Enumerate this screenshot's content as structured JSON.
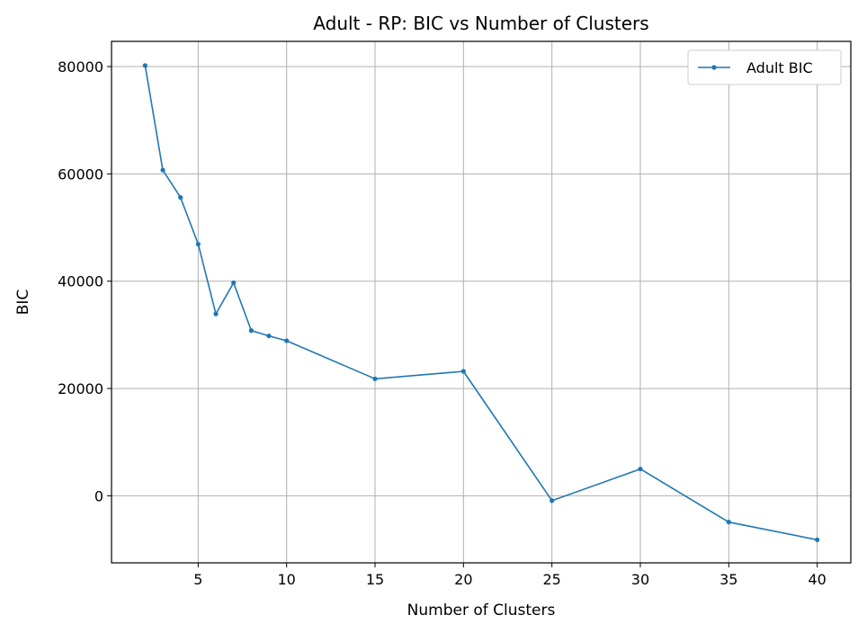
{
  "chart_data": {
    "type": "line",
    "title": "Adult - RP: BIC vs Number of Clusters",
    "xlabel": "Number of Clusters",
    "ylabel": "BIC",
    "xlim": [
      0.1,
      41.9
    ],
    "ylim": [
      -12500,
      84700
    ],
    "xticks": [
      5,
      10,
      15,
      20,
      25,
      30,
      35,
      40
    ],
    "yticks": [
      0,
      20000,
      40000,
      60000,
      80000
    ],
    "grid": true,
    "legend_position": "top-right",
    "series": [
      {
        "name": "Adult BIC",
        "color": "#1f77b4",
        "marker": "circle",
        "x": [
          2,
          3,
          4,
          5,
          6,
          7,
          8,
          9,
          10,
          15,
          20,
          25,
          30,
          35,
          40
        ],
        "y": [
          80200,
          60700,
          55600,
          46900,
          33900,
          39700,
          30800,
          29800,
          28900,
          21800,
          23200,
          -900,
          5000,
          -4900,
          -8200
        ]
      }
    ]
  }
}
